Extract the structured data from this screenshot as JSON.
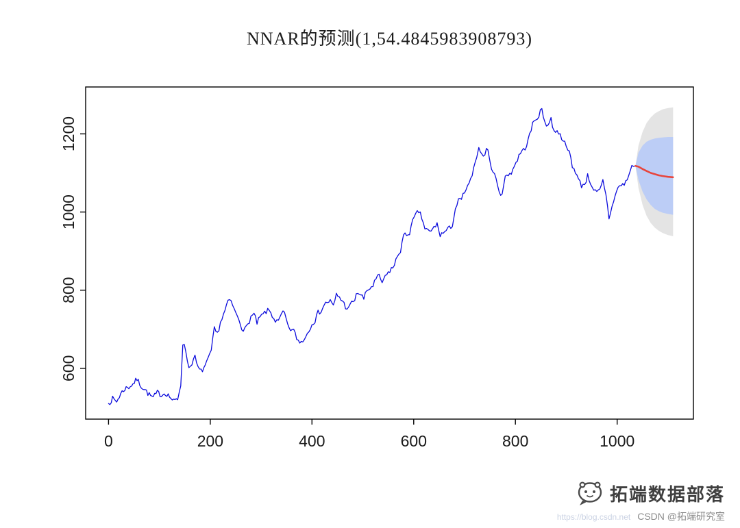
{
  "title": "NNAR的预测(1,54.4845983908793)",
  "watermark": {
    "brand": "拓端数据部落",
    "url_fragment": "https://blog.csdn.net",
    "credit": "CSDN @拓端研究室",
    "logo_icon": "chat-bubble-mascot"
  },
  "chart_data": {
    "type": "line",
    "title": "NNAR的预测(1,54.4845983908793)",
    "xlabel": "",
    "ylabel": "",
    "x_ticks": [
      0,
      200,
      400,
      600,
      800,
      1000
    ],
    "y_ticks": [
      600,
      800,
      1000,
      1200
    ],
    "xlim": [
      -45,
      1150
    ],
    "ylim": [
      470,
      1320
    ],
    "grid": false,
    "legend": "none",
    "noise_amp": 7,
    "noise_seed": 7,
    "series": [
      {
        "name": "observed",
        "color": "#0b0bdc",
        "width": 1.3,
        "noise": true,
        "points": [
          [
            0,
            510
          ],
          [
            8,
            522
          ],
          [
            16,
            515
          ],
          [
            24,
            535
          ],
          [
            32,
            548
          ],
          [
            40,
            552
          ],
          [
            48,
            560
          ],
          [
            56,
            572
          ],
          [
            64,
            555
          ],
          [
            72,
            545
          ],
          [
            80,
            532
          ],
          [
            88,
            525
          ],
          [
            96,
            538
          ],
          [
            104,
            532
          ],
          [
            112,
            537
          ],
          [
            120,
            528
          ],
          [
            128,
            515
          ],
          [
            136,
            522
          ],
          [
            142,
            560
          ],
          [
            146,
            665
          ],
          [
            152,
            645
          ],
          [
            158,
            600
          ],
          [
            164,
            615
          ],
          [
            170,
            628
          ],
          [
            176,
            600
          ],
          [
            182,
            592
          ],
          [
            190,
            606
          ],
          [
            196,
            622
          ],
          [
            202,
            645
          ],
          [
            208,
            700
          ],
          [
            214,
            688
          ],
          [
            220,
            718
          ],
          [
            226,
            736
          ],
          [
            232,
            760
          ],
          [
            238,
            775
          ],
          [
            244,
            762
          ],
          [
            250,
            740
          ],
          [
            256,
            728
          ],
          [
            262,
            705
          ],
          [
            268,
            698
          ],
          [
            274,
            712
          ],
          [
            280,
            732
          ],
          [
            286,
            738
          ],
          [
            292,
            716
          ],
          [
            298,
            730
          ],
          [
            304,
            738
          ],
          [
            310,
            745
          ],
          [
            316,
            748
          ],
          [
            322,
            735
          ],
          [
            328,
            722
          ],
          [
            334,
            718
          ],
          [
            340,
            738
          ],
          [
            346,
            742
          ],
          [
            352,
            708
          ],
          [
            358,
            700
          ],
          [
            364,
            696
          ],
          [
            370,
            678
          ],
          [
            376,
            665
          ],
          [
            382,
            672
          ],
          [
            388,
            682
          ],
          [
            394,
            698
          ],
          [
            400,
            716
          ],
          [
            406,
            722
          ],
          [
            412,
            742
          ],
          [
            418,
            748
          ],
          [
            424,
            762
          ],
          [
            430,
            770
          ],
          [
            436,
            772
          ],
          [
            442,
            758
          ],
          [
            448,
            788
          ],
          [
            454,
            782
          ],
          [
            460,
            772
          ],
          [
            466,
            758
          ],
          [
            472,
            752
          ],
          [
            478,
            768
          ],
          [
            484,
            775
          ],
          [
            490,
            795
          ],
          [
            496,
            788
          ],
          [
            502,
            778
          ],
          [
            508,
            798
          ],
          [
            514,
            805
          ],
          [
            520,
            812
          ],
          [
            526,
            828
          ],
          [
            532,
            836
          ],
          [
            538,
            820
          ],
          [
            544,
            832
          ],
          [
            550,
            845
          ],
          [
            556,
            855
          ],
          [
            562,
            862
          ],
          [
            568,
            888
          ],
          [
            574,
            902
          ],
          [
            580,
            938
          ],
          [
            586,
            942
          ],
          [
            592,
            948
          ],
          [
            598,
            975
          ],
          [
            604,
            992
          ],
          [
            610,
            1002
          ],
          [
            616,
            985
          ],
          [
            622,
            958
          ],
          [
            628,
            952
          ],
          [
            634,
            948
          ],
          [
            640,
            962
          ],
          [
            646,
            968
          ],
          [
            652,
            942
          ],
          [
            658,
            946
          ],
          [
            664,
            952
          ],
          [
            670,
            958
          ],
          [
            676,
            968
          ],
          [
            682,
            1008
          ],
          [
            688,
            1028
          ],
          [
            694,
            1032
          ],
          [
            700,
            1052
          ],
          [
            706,
            1062
          ],
          [
            712,
            1082
          ],
          [
            718,
            1108
          ],
          [
            724,
            1135
          ],
          [
            728,
            1172
          ],
          [
            734,
            1145
          ],
          [
            740,
            1152
          ],
          [
            746,
            1162
          ],
          [
            750,
            1128
          ],
          [
            756,
            1098
          ],
          [
            762,
            1092
          ],
          [
            768,
            1045
          ],
          [
            774,
            1052
          ],
          [
            780,
            1088
          ],
          [
            786,
            1096
          ],
          [
            792,
            1102
          ],
          [
            798,
            1118
          ],
          [
            804,
            1135
          ],
          [
            810,
            1152
          ],
          [
            816,
            1158
          ],
          [
            822,
            1172
          ],
          [
            828,
            1196
          ],
          [
            834,
            1225
          ],
          [
            840,
            1238
          ],
          [
            846,
            1248
          ],
          [
            852,
            1262
          ],
          [
            858,
            1230
          ],
          [
            864,
            1222
          ],
          [
            870,
            1238
          ],
          [
            876,
            1205
          ],
          [
            882,
            1212
          ],
          [
            888,
            1195
          ],
          [
            894,
            1188
          ],
          [
            900,
            1162
          ],
          [
            906,
            1155
          ],
          [
            912,
            1118
          ],
          [
            918,
            1105
          ],
          [
            924,
            1082
          ],
          [
            930,
            1068
          ],
          [
            936,
            1072
          ],
          [
            942,
            1092
          ],
          [
            948,
            1075
          ],
          [
            954,
            1058
          ],
          [
            960,
            1048
          ],
          [
            966,
            1055
          ],
          [
            972,
            1078
          ],
          [
            978,
            1042
          ],
          [
            984,
            985
          ],
          [
            990,
            1012
          ],
          [
            996,
            1045
          ],
          [
            1002,
            1062
          ],
          [
            1008,
            1068
          ],
          [
            1014,
            1072
          ],
          [
            1020,
            1082
          ],
          [
            1026,
            1108
          ],
          [
            1032,
            1122
          ],
          [
            1036,
            1118
          ]
        ]
      },
      {
        "name": "forecast-mean",
        "color": "#e8453c",
        "width": 2.6,
        "noise": false,
        "points": [
          [
            1036,
            1118
          ],
          [
            1042,
            1116
          ],
          [
            1050,
            1110
          ],
          [
            1058,
            1105
          ],
          [
            1066,
            1100
          ],
          [
            1074,
            1097
          ],
          [
            1082,
            1094
          ],
          [
            1090,
            1092
          ],
          [
            1100,
            1090
          ],
          [
            1110,
            1089
          ]
        ]
      }
    ],
    "bands": [
      {
        "name": "interval-95",
        "color": "#e4e4e4",
        "x": [
          1036,
          1042,
          1050,
          1058,
          1066,
          1074,
          1082,
          1090,
          1100,
          1110
        ],
        "upper": [
          1118,
          1170,
          1205,
          1228,
          1242,
          1252,
          1258,
          1263,
          1266,
          1268
        ],
        "lower": [
          1118,
          1062,
          1018,
          990,
          972,
          960,
          952,
          946,
          941,
          938
        ]
      },
      {
        "name": "interval-80",
        "color": "#bccdf6",
        "x": [
          1036,
          1042,
          1050,
          1058,
          1066,
          1074,
          1082,
          1090,
          1100,
          1110
        ],
        "upper": [
          1118,
          1152,
          1170,
          1180,
          1185,
          1188,
          1190,
          1191,
          1192,
          1192
        ],
        "lower": [
          1118,
          1082,
          1052,
          1032,
          1018,
          1008,
          1002,
          998,
          995,
          993
        ]
      }
    ]
  }
}
